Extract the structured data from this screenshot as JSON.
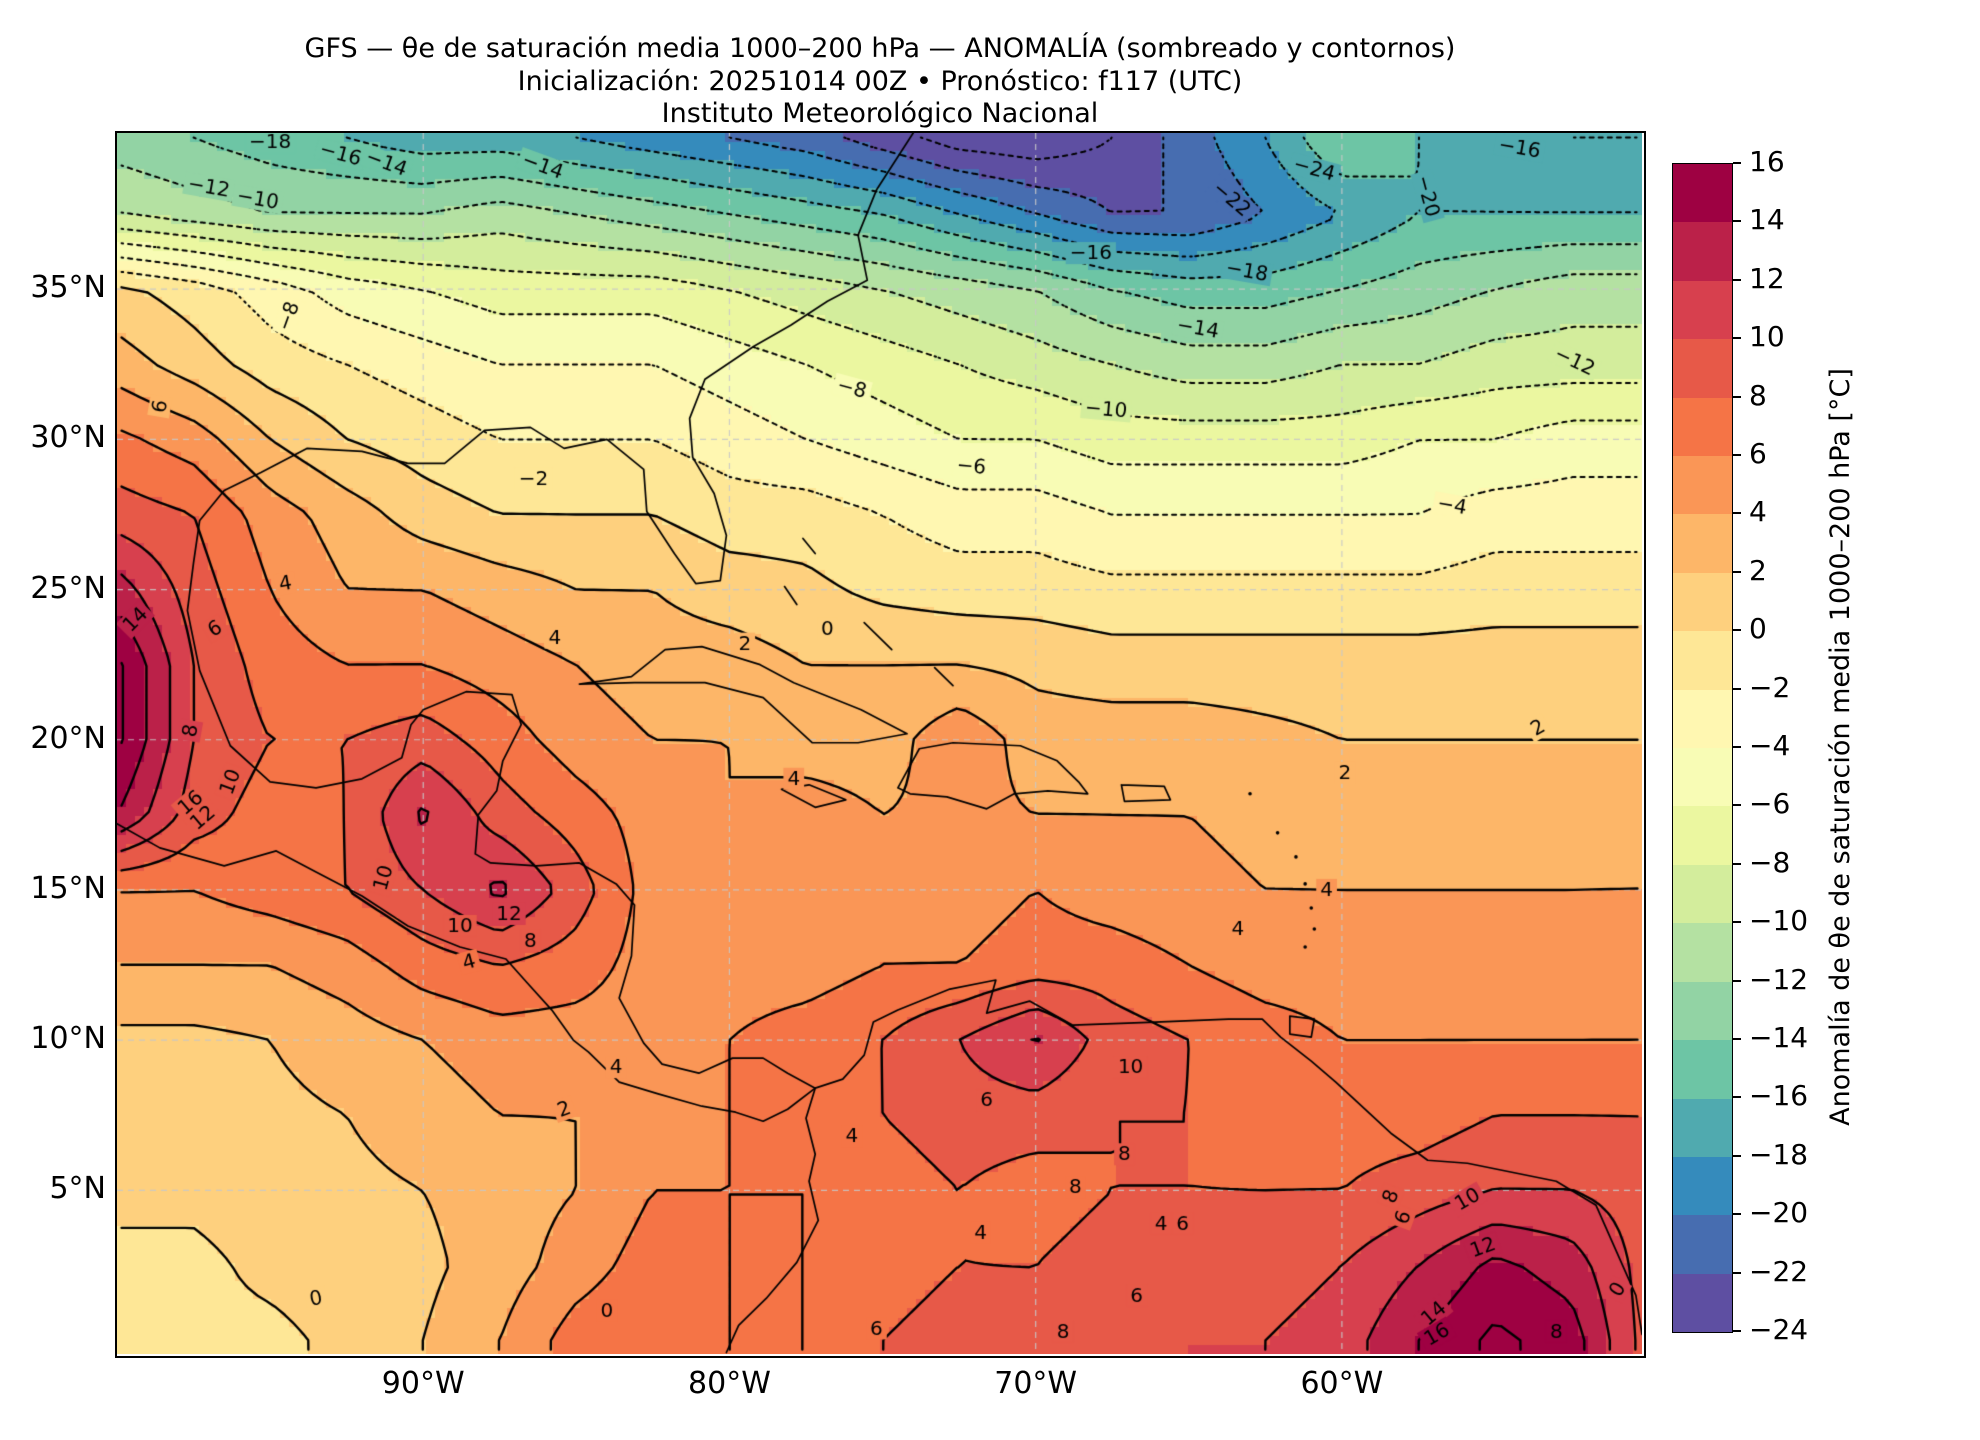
{
  "title": {
    "line1": "GFS — θe de saturación media 1000–200 hPa — ANOMALÍA (sombreado y contornos)",
    "line2": "Inicialización: 20251014 00Z   •   Pronóstico: f117 (UTC)",
    "line3": "Instituto Meteorológico Nacional"
  },
  "axes": {
    "x_ticks": [
      {
        "label": "90°W",
        "lon": -90
      },
      {
        "label": "80°W",
        "lon": -80
      },
      {
        "label": "70°W",
        "lon": -70
      },
      {
        "label": "60°W",
        "lon": -60
      }
    ],
    "y_ticks": [
      {
        "label": "35°N",
        "lat": 35
      },
      {
        "label": "30°N",
        "lat": 30
      },
      {
        "label": "25°N",
        "lat": 25
      },
      {
        "label": "20°N",
        "lat": 20
      },
      {
        "label": "15°N",
        "lat": 15
      },
      {
        "label": "10°N",
        "lat": 10
      },
      {
        "label": "5°N",
        "lat": 5
      }
    ],
    "grid_lons": [
      -90,
      -80,
      -70,
      -60
    ],
    "grid_lats": [
      5,
      10,
      15,
      20,
      25,
      30,
      35
    ]
  },
  "colorbar": {
    "label": "Anomalía de θe de saturación media 1000–200 hPa [°C]",
    "ticks": [
      "16",
      "14",
      "12",
      "10",
      "8",
      "6",
      "4",
      "2",
      "0",
      "−2",
      "−4",
      "−6",
      "−8",
      "−10",
      "−12",
      "−14",
      "−16",
      "−18",
      "−20",
      "−22",
      "−24"
    ],
    "vmin": -24,
    "vmax": 16,
    "n_bins": 20
  },
  "colormap": {
    "name": "Spectral_r",
    "anchors": [
      "#9e0142",
      "#d53e4f",
      "#f46d43",
      "#fdae61",
      "#fee08b",
      "#ffffbf",
      "#e6f598",
      "#abdda4",
      "#66c2a5",
      "#3288bd",
      "#5e4fa2"
    ]
  },
  "chart_data": {
    "type": "heatmap",
    "subtype": "filled-contour-map",
    "units": "°C",
    "contour_interval": 2,
    "levels_min": -24,
    "levels_max": 16,
    "negative_contour_style": "dotted",
    "positive_contour_style": "solid",
    "lon": [
      -100,
      -97.5,
      -95,
      -92.5,
      -90,
      -87.5,
      -85,
      -82.5,
      -80,
      -77.5,
      -75,
      -72.5,
      -70,
      -67.5,
      -65,
      -62.5,
      -60,
      -57.5,
      -55,
      -52.5,
      -50
    ],
    "lat": [
      40,
      37.5,
      35,
      32.5,
      30,
      27.5,
      25,
      22.5,
      20,
      17.5,
      15,
      12.5,
      10,
      7.5,
      5,
      2.5,
      0
    ],
    "values": [
      [
        -13,
        -14,
        -15,
        -16,
        -17,
        -17,
        -18,
        -19,
        -20,
        -21,
        -23,
        -25,
        -25.5,
        -24,
        -21,
        -18,
        -14,
        -16,
        -17,
        -18,
        -18
      ],
      [
        -10,
        -11,
        -12,
        -12,
        -12,
        -11,
        -12,
        -13,
        -14,
        -15,
        -16,
        -18,
        -20,
        -22,
        -22,
        -20,
        -18,
        -16,
        -16,
        -16,
        -16
      ],
      [
        0.5,
        -1,
        -3,
        -5,
        -6,
        -7,
        -7,
        -7,
        -8,
        -9,
        -10,
        -11,
        -12,
        -14,
        -15,
        -15,
        -14,
        -13,
        -12,
        -11,
        -11
      ],
      [
        3,
        1,
        -1,
        -2,
        -3,
        -4,
        -4,
        -4,
        -5,
        -6,
        -7,
        -8,
        -9,
        -10,
        -11,
        -11,
        -10,
        -10,
        -9,
        -9,
        -9
      ],
      [
        6.5,
        5,
        2,
        0,
        -1,
        -2,
        -2,
        -2,
        -3,
        -4,
        -5,
        -6,
        -6,
        -7,
        -7,
        -7,
        -7,
        -6,
        -6,
        -5,
        -5
      ],
      [
        9,
        8,
        5,
        3,
        1,
        0,
        0,
        0,
        -1,
        -1,
        -2,
        -3,
        -3,
        -4,
        -4,
        -4,
        -4,
        -4,
        -3,
        -3,
        -3
      ],
      [
        13,
        9,
        6,
        4,
        4,
        3,
        2,
        2,
        1,
        0.5,
        -0.5,
        -1,
        -1,
        -1.5,
        -1.5,
        -1.5,
        -1.5,
        -1.5,
        -1,
        -1,
        -1
      ],
      [
        16.5,
        10,
        7,
        6,
        6,
        5,
        4,
        3,
        3,
        2,
        2,
        2,
        1.5,
        1,
        1,
        1,
        1,
        1,
        1,
        1,
        1
      ],
      [
        16.5,
        10,
        8,
        8,
        9,
        7,
        5,
        4,
        4,
        3,
        3,
        5.5,
        3,
        3,
        3,
        2.5,
        2,
        2,
        2,
        2,
        2
      ],
      [
        14,
        9,
        7,
        8,
        12.4,
        9,
        7,
        5,
        4,
        5,
        4,
        4.5,
        4,
        4,
        4,
        3.5,
        3,
        3,
        3,
        3,
        3
      ],
      [
        6,
        6,
        7,
        8,
        10,
        12.5,
        9,
        5,
        4,
        4,
        5,
        5,
        6,
        5,
        4.5,
        4,
        4,
        4,
        4,
        4,
        4
      ],
      [
        4,
        4,
        4,
        5,
        7,
        8,
        7,
        5,
        5,
        5,
        6,
        6,
        7,
        7,
        6,
        5,
        5,
        5,
        5,
        5,
        6
      ],
      [
        1.5,
        1.5,
        2,
        3,
        4,
        5,
        5,
        5,
        6,
        7,
        8,
        10,
        12.2,
        9,
        8,
        7,
        6,
        6,
        6,
        6,
        6
      ],
      [
        1,
        1,
        1.5,
        2,
        3,
        4,
        4,
        5,
        6,
        7,
        8,
        9,
        9,
        8,
        8,
        7,
        7,
        7,
        8,
        8,
        8
      ],
      [
        0.5,
        0.5,
        1,
        1.5,
        2,
        3,
        4,
        6,
        6,
        6,
        7,
        8,
        7,
        8,
        8,
        8,
        8,
        9,
        10,
        10,
        9
      ],
      [
        -0.5,
        -0.5,
        0.5,
        1,
        1.5,
        3,
        5,
        7,
        6,
        6,
        7,
        8,
        8,
        9,
        9,
        9,
        10,
        12,
        14.5,
        13,
        9
      ],
      [
        -0.5,
        -0.5,
        -0.5,
        0.5,
        2,
        4,
        7,
        8,
        6,
        6,
        8,
        9,
        8,
        9,
        10,
        10,
        11,
        14,
        16.5,
        15,
        9
      ]
    ],
    "contour_labels": [
      {
        "v": -18,
        "lon": -95.0,
        "lat": 39.9,
        "rot": 0
      },
      {
        "v": -16,
        "lon": -92.7,
        "lat": 39.5,
        "rot": 15
      },
      {
        "v": -14,
        "lon": -91.2,
        "lat": 39.2,
        "rot": 20
      },
      {
        "v": -14,
        "lon": -86.1,
        "lat": 39.1,
        "rot": 20
      },
      {
        "v": -12,
        "lon": -97.0,
        "lat": 38.4,
        "rot": 10
      },
      {
        "v": -10,
        "lon": -95.4,
        "lat": 38.0,
        "rot": 10
      },
      {
        "v": -8,
        "lon": -94.4,
        "lat": 34.1,
        "rot": -70
      },
      {
        "v": -24,
        "lon": -60.9,
        "lat": 39.0,
        "rot": 15
      },
      {
        "v": -22,
        "lon": -63.6,
        "lat": 38.0,
        "rot": 40
      },
      {
        "v": -20,
        "lon": -57.2,
        "lat": 38.1,
        "rot": 75
      },
      {
        "v": -18,
        "lon": -63.1,
        "lat": 35.6,
        "rot": 10
      },
      {
        "v": -16,
        "lon": -54.2,
        "lat": 39.7,
        "rot": 10
      },
      {
        "v": -16,
        "lon": -68.2,
        "lat": 36.2,
        "rot": 0
      },
      {
        "v": -14,
        "lon": -64.7,
        "lat": 33.7,
        "rot": 10
      },
      {
        "v": -12,
        "lon": -52.4,
        "lat": 32.6,
        "rot": 25
      },
      {
        "v": -10,
        "lon": -67.7,
        "lat": 31.0,
        "rot": 5
      },
      {
        "v": -8,
        "lon": -76.0,
        "lat": 31.7,
        "rot": 15
      },
      {
        "v": -6,
        "lon": -72.1,
        "lat": 29.1,
        "rot": 5
      },
      {
        "v": -4,
        "lon": -56.4,
        "lat": 27.8,
        "rot": 10
      },
      {
        "v": -2,
        "lon": -86.4,
        "lat": 28.7,
        "rot": 0
      },
      {
        "v": 6,
        "lon": -98.6,
        "lat": 31.1,
        "rot": -80
      },
      {
        "v": 4,
        "lon": -94.5,
        "lat": 25.2,
        "rot": -10
      },
      {
        "v": 6,
        "lon": -96.8,
        "lat": 23.7,
        "rot": -30
      },
      {
        "v": 14,
        "lon": -99.4,
        "lat": 24.0,
        "rot": -45
      },
      {
        "v": 8,
        "lon": -97.6,
        "lat": 20.3,
        "rot": -80
      },
      {
        "v": 16,
        "lon": -97.6,
        "lat": 17.9,
        "rot": -40
      },
      {
        "v": 12,
        "lon": -97.2,
        "lat": 17.4,
        "rot": -40
      },
      {
        "v": 10,
        "lon": -96.3,
        "lat": 18.6,
        "rot": -70
      },
      {
        "v": 4,
        "lon": -85.7,
        "lat": 23.4,
        "rot": 0
      },
      {
        "v": 2,
        "lon": -79.5,
        "lat": 23.2,
        "rot": 0
      },
      {
        "v": 0,
        "lon": -76.8,
        "lat": 23.7,
        "rot": 0
      },
      {
        "v": 4,
        "lon": -77.9,
        "lat": 18.7,
        "rot": 0
      },
      {
        "v": 10,
        "lon": -91.3,
        "lat": 15.4,
        "rot": -75
      },
      {
        "v": 10,
        "lon": -88.8,
        "lat": 13.8,
        "rot": 0
      },
      {
        "v": 12,
        "lon": -87.2,
        "lat": 14.2,
        "rot": 0
      },
      {
        "v": 8,
        "lon": -86.5,
        "lat": 13.3,
        "rot": 0
      },
      {
        "v": 4,
        "lon": -88.5,
        "lat": 12.6,
        "rot": -15
      },
      {
        "v": 2,
        "lon": -85.4,
        "lat": 7.7,
        "rot": -20
      },
      {
        "v": 4,
        "lon": -83.7,
        "lat": 9.1,
        "rot": 0
      },
      {
        "v": 4,
        "lon": -60.5,
        "lat": 15.0,
        "rot": 0
      },
      {
        "v": 4,
        "lon": -63.4,
        "lat": 13.7,
        "rot": 0
      },
      {
        "v": 2,
        "lon": -53.6,
        "lat": 20.4,
        "rot": -30
      },
      {
        "v": 2,
        "lon": -59.9,
        "lat": 18.9,
        "rot": 0
      },
      {
        "v": 10,
        "lon": -66.9,
        "lat": 9.1,
        "rot": 0
      },
      {
        "v": 6,
        "lon": -71.6,
        "lat": 8.0,
        "rot": 0
      },
      {
        "v": 8,
        "lon": -68.7,
        "lat": 5.1,
        "rot": 0
      },
      {
        "v": 8,
        "lon": -67.1,
        "lat": 6.2,
        "rot": 0
      },
      {
        "v": 4,
        "lon": -65.9,
        "lat": 3.9,
        "rot": 0
      },
      {
        "v": 6,
        "lon": -65.2,
        "lat": 3.9,
        "rot": 0
      },
      {
        "v": 6,
        "lon": -66.7,
        "lat": 1.5,
        "rot": 0
      },
      {
        "v": 4,
        "lon": -71.8,
        "lat": 3.6,
        "rot": 0
      },
      {
        "v": 4,
        "lon": -76.0,
        "lat": 6.8,
        "rot": 0
      },
      {
        "v": 6,
        "lon": -75.2,
        "lat": 0.4,
        "rot": 0
      },
      {
        "v": 8,
        "lon": -69.1,
        "lat": 0.3,
        "rot": 0
      },
      {
        "v": 0,
        "lon": -93.5,
        "lat": 1.4,
        "rot": -10
      },
      {
        "v": 0,
        "lon": -84.0,
        "lat": 1.0,
        "rot": 0
      },
      {
        "v": 10,
        "lon": -55.9,
        "lat": 4.7,
        "rot": -30
      },
      {
        "v": 12,
        "lon": -55.4,
        "lat": 3.1,
        "rot": -20
      },
      {
        "v": 14,
        "lon": -57.0,
        "lat": 0.9,
        "rot": -40
      },
      {
        "v": 16,
        "lon": -56.9,
        "lat": 0.2,
        "rot": -30
      },
      {
        "v": 8,
        "lon": -53.0,
        "lat": 0.3,
        "rot": 0
      },
      {
        "v": 6,
        "lon": -58.0,
        "lat": 4.1,
        "rot": -70
      },
      {
        "v": 8,
        "lon": -58.4,
        "lat": 4.8,
        "rot": -70
      },
      {
        "v": 0,
        "lon": -51.0,
        "lat": 1.7,
        "rot": -60
      }
    ]
  }
}
